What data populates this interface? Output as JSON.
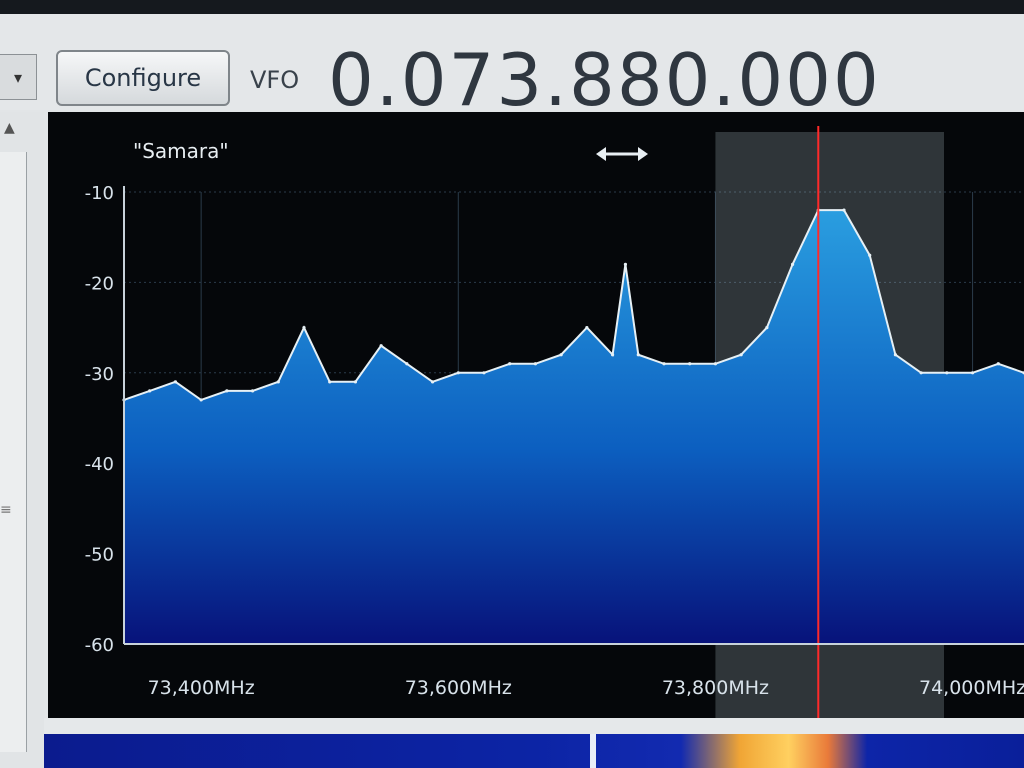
{
  "toolbar": {
    "dropdown_icon": "chevron-down-icon",
    "configure_label": "Configure",
    "vfo_label": "VFO",
    "vfo_value": "0.073.880.000"
  },
  "spectrum": {
    "station_name": "\"Samara\"",
    "bandwidth_icon": "double-arrow-icon",
    "colors": {
      "background": "#05070a",
      "fill_top": "#2596d8",
      "fill_bottom": "#07127a",
      "trace": "#e6f0f5",
      "grid": "#2b3b4a",
      "tuning_line": "#ff2a2a",
      "filter_band": "#c9dbe5"
    }
  },
  "chart_data": {
    "type": "area",
    "title": "\"Samara\"",
    "xlabel": "",
    "ylabel": "",
    "ylim": [
      -60,
      -10
    ],
    "xlim": [
      73.34,
      74.04
    ],
    "y_ticks": [
      -10,
      -20,
      -30,
      -40,
      -50,
      -60
    ],
    "y_tick_labels": [
      "-10",
      "-20",
      "-30",
      "-40",
      "-50",
      "-60"
    ],
    "x_ticks": [
      73.4,
      73.6,
      73.8,
      74.0
    ],
    "x_tick_labels": [
      "73,400MHz",
      "73,600MHz",
      "73,800MHz",
      "74,000MHz"
    ],
    "grid": true,
    "tuned_frequency": 73.88,
    "filter_range": [
      73.8,
      74.04
    ],
    "series": [
      {
        "x": [
          73.34,
          73.36,
          73.38,
          73.4,
          73.42,
          73.44,
          73.46,
          73.48,
          73.5,
          73.52,
          73.54,
          73.56,
          73.58,
          73.6,
          73.62,
          73.64,
          73.66,
          73.68,
          73.7,
          73.72,
          73.73,
          73.74,
          73.76,
          73.78,
          73.8,
          73.82,
          73.84,
          73.86,
          73.88,
          73.9,
          73.92,
          73.94,
          73.96,
          73.98,
          74.0,
          74.02,
          74.04
        ],
        "y": [
          -33,
          -32,
          -31,
          -33,
          -32,
          -32,
          -31,
          -25,
          -31,
          -31,
          -27,
          -29,
          -31,
          -30,
          -30,
          -29,
          -29,
          -28,
          -25,
          -28,
          -18,
          -28,
          -29,
          -29,
          -29,
          -28,
          -25,
          -18,
          -12,
          -12,
          -17,
          -28,
          -30,
          -30,
          -30,
          -29,
          -30
        ]
      }
    ]
  }
}
